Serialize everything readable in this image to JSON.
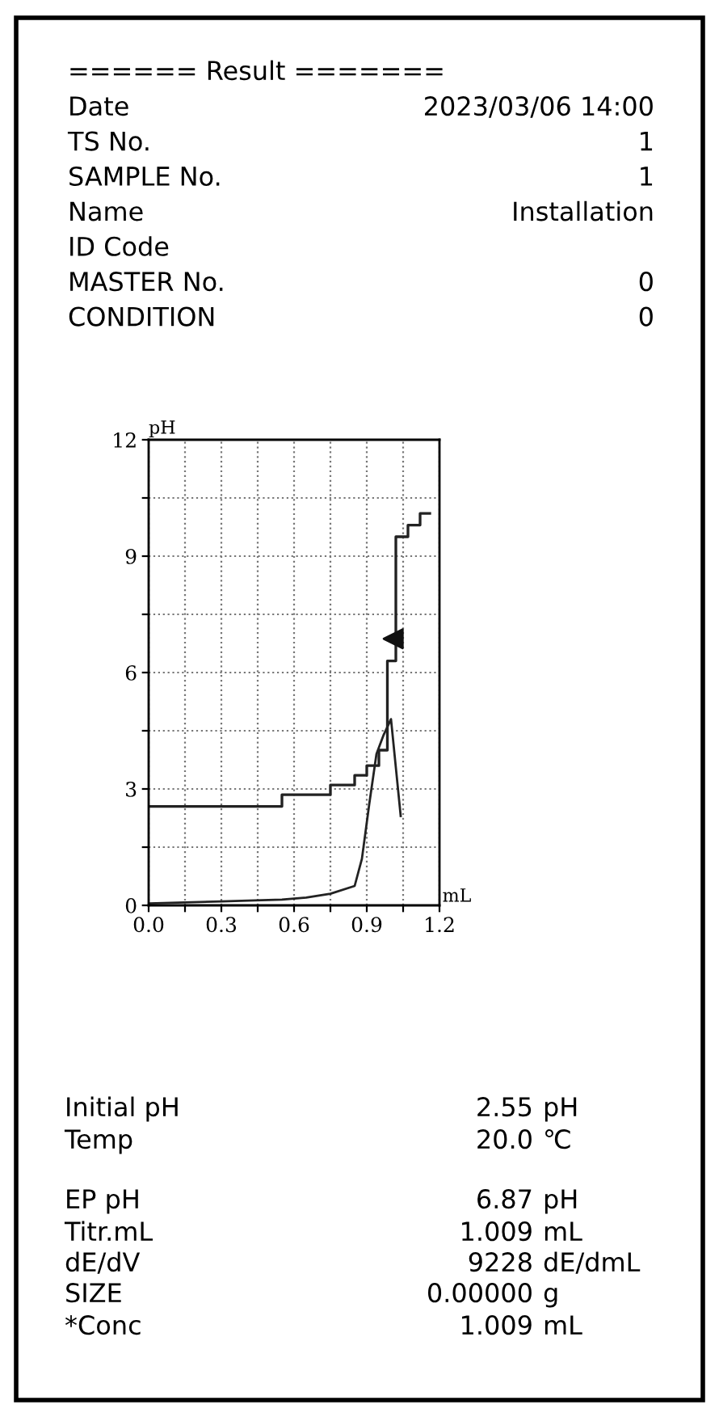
{
  "chart_data": {
    "type": "step",
    "title": "====== Result =======",
    "ylabel": "pH",
    "xlabel": "mL",
    "series": [
      {
        "color": "#222222",
        "x": [
          0.0,
          0.55,
          0.75,
          0.85,
          0.9,
          0.95,
          0.985,
          1.02,
          1.07,
          1.12,
          1.16
        ],
        "values": [
          2.55,
          2.85,
          3.1,
          3.35,
          3.6,
          4.0,
          6.3,
          9.5,
          9.8,
          10.1,
          10.1
        ]
      },
      {
        "type": "line",
        "color": "#222222",
        "x": [
          0.0,
          0.3,
          0.55,
          0.65,
          0.75,
          0.85,
          0.88,
          0.91,
          0.94,
          0.97,
          1.0,
          1.04
        ],
        "values": [
          0.05,
          0.1,
          0.15,
          0.2,
          0.3,
          0.5,
          1.2,
          2.6,
          3.9,
          4.4,
          4.8,
          2.3
        ]
      },
      {
        "type": "scatter",
        "marker": "triangle",
        "color": "#111111",
        "x": [
          1.009
        ],
        "values": [
          6.87
        ]
      }
    ],
    "xlim": [
      0.0,
      1.2
    ],
    "ylim": [
      0,
      12
    ],
    "xticks": [
      {
        "value": 0.0,
        "label": "0.0"
      },
      {
        "value": 0.15,
        "label": null
      },
      {
        "value": 0.3,
        "label": "0.3"
      },
      {
        "value": 0.45,
        "label": null
      },
      {
        "value": 0.6,
        "label": "0.6"
      },
      {
        "value": 0.75,
        "label": null
      },
      {
        "value": 0.9,
        "label": "0.9"
      },
      {
        "value": 1.05,
        "label": null
      },
      {
        "value": 1.2,
        "label": "1.2"
      }
    ],
    "yticks": [
      0,
      {
        "value": 1.5,
        "label": null
      },
      3,
      {
        "value": 4.5,
        "label": null
      },
      6,
      {
        "value": 7.5,
        "label": null
      },
      9,
      {
        "value": 10.5,
        "label": null
      },
      12
    ],
    "grid": true,
    "annotations": [
      "Date",
      "2023/03/06 14:00",
      "TS No.",
      "1",
      "SAMPLE No.",
      "1",
      "Name",
      "Installation",
      "ID Code",
      "MASTER No.",
      "0",
      "CONDITION",
      "0",
      "Initial pH",
      "2.55",
      "pH",
      "Temp",
      "20.0",
      "℃",
      "EP pH",
      "6.87",
      "pH",
      "Titr.mL",
      "1.009",
      "mL",
      "dE/dV",
      "9228",
      "dE/dmL",
      "SIZE",
      "0.00000",
      "g",
      "*Conc",
      "1.009",
      "mL"
    ]
  }
}
